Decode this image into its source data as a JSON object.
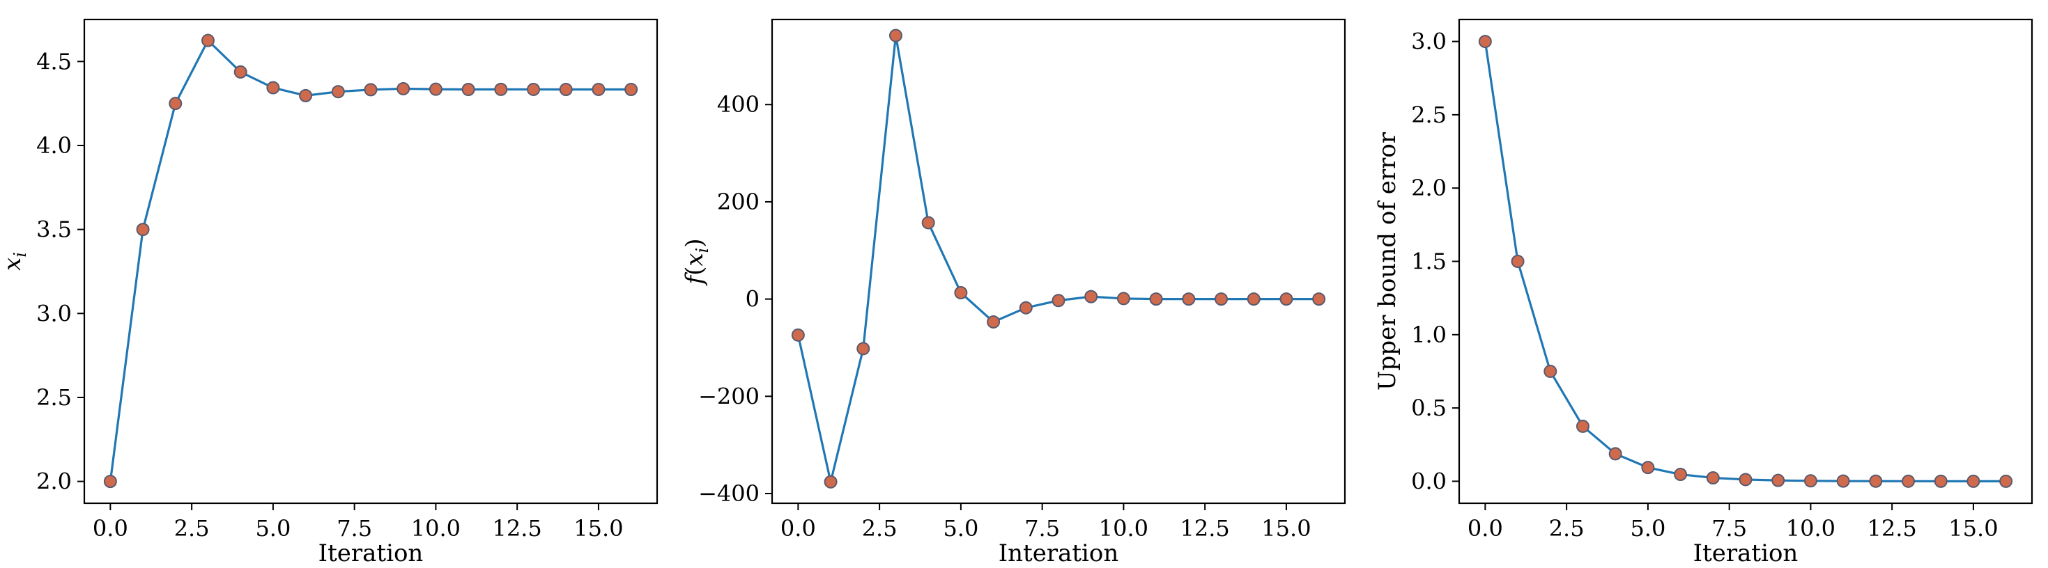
{
  "colors": {
    "line": "#1f77b4",
    "marker": "#d06a4c",
    "marker_edge": "#5a5a6e",
    "axis": "#000000"
  },
  "chart_data": [
    {
      "type": "line",
      "xlabel": "Iteration",
      "ylabel": "x_i",
      "xlim": [
        -0.8,
        16.8
      ],
      "ylim": [
        1.87,
        4.75
      ],
      "xticks": [
        0.0,
        2.5,
        5.0,
        7.5,
        10.0,
        12.5,
        15.0
      ],
      "xtick_labels": [
        "0.0",
        "2.5",
        "5.0",
        "7.5",
        "10.0",
        "12.5",
        "15.0"
      ],
      "yticks": [
        2.0,
        2.5,
        3.0,
        3.5,
        4.0,
        4.5
      ],
      "ytick_labels": [
        "2.0",
        "2.5",
        "3.0",
        "3.5",
        "4.0",
        "4.5"
      ],
      "x": [
        0,
        1,
        2,
        3,
        4,
        5,
        6,
        7,
        8,
        9,
        10,
        11,
        12,
        13,
        14,
        15,
        16
      ],
      "y": [
        2.0,
        3.5,
        4.25,
        4.625,
        4.4375,
        4.34375,
        4.296875,
        4.3203125,
        4.33203125,
        4.337890625,
        4.3349609375,
        4.33349609375,
        4.333984375,
        4.333740234,
        4.333618164,
        4.333679199,
        4.333648682
      ]
    },
    {
      "type": "line",
      "xlabel": "Interation",
      "ylabel": "f(x_i)",
      "xlim": [
        -0.8,
        16.8
      ],
      "ylim": [
        -420,
        575
      ],
      "xticks": [
        0.0,
        2.5,
        5.0,
        7.5,
        10.0,
        12.5,
        15.0
      ],
      "xtick_labels": [
        "0.0",
        "2.5",
        "5.0",
        "7.5",
        "10.0",
        "12.5",
        "15.0"
      ],
      "yticks": [
        -400,
        -200,
        0,
        200,
        400
      ],
      "ytick_labels": [
        "−400",
        "−200",
        "0",
        "200",
        "400"
      ],
      "x": [
        0,
        1,
        2,
        3,
        4,
        5,
        6,
        7,
        8,
        9,
        10,
        11,
        12,
        13,
        14,
        15,
        16
      ],
      "y": [
        -74,
        -376,
        -102,
        542,
        157,
        13,
        -47,
        -18,
        -3,
        5,
        1,
        0,
        0,
        0,
        0,
        0,
        0
      ]
    },
    {
      "type": "line",
      "xlabel": "Iteration",
      "ylabel": "Upper bound of error",
      "xlim": [
        -0.8,
        16.8
      ],
      "ylim": [
        -0.15,
        3.15
      ],
      "xticks": [
        0.0,
        2.5,
        5.0,
        7.5,
        10.0,
        12.5,
        15.0
      ],
      "xtick_labels": [
        "0.0",
        "2.5",
        "5.0",
        "7.5",
        "10.0",
        "12.5",
        "15.0"
      ],
      "yticks": [
        0.0,
        0.5,
        1.0,
        1.5,
        2.0,
        2.5,
        3.0
      ],
      "ytick_labels": [
        "0.0",
        "0.5",
        "1.0",
        "1.5",
        "2.0",
        "2.5",
        "3.0"
      ],
      "x": [
        0,
        1,
        2,
        3,
        4,
        5,
        6,
        7,
        8,
        9,
        10,
        11,
        12,
        13,
        14,
        15,
        16
      ],
      "y": [
        3.0,
        1.5,
        0.75,
        0.375,
        0.1875,
        0.09375,
        0.046875,
        0.0234375,
        0.01171875,
        0.005859375,
        0.0029296875,
        0.00146484375,
        0.000732421875,
        0.0003662109375,
        0.00018310546875,
        9.1552734375e-05,
        4.57763671875e-05
      ]
    }
  ]
}
